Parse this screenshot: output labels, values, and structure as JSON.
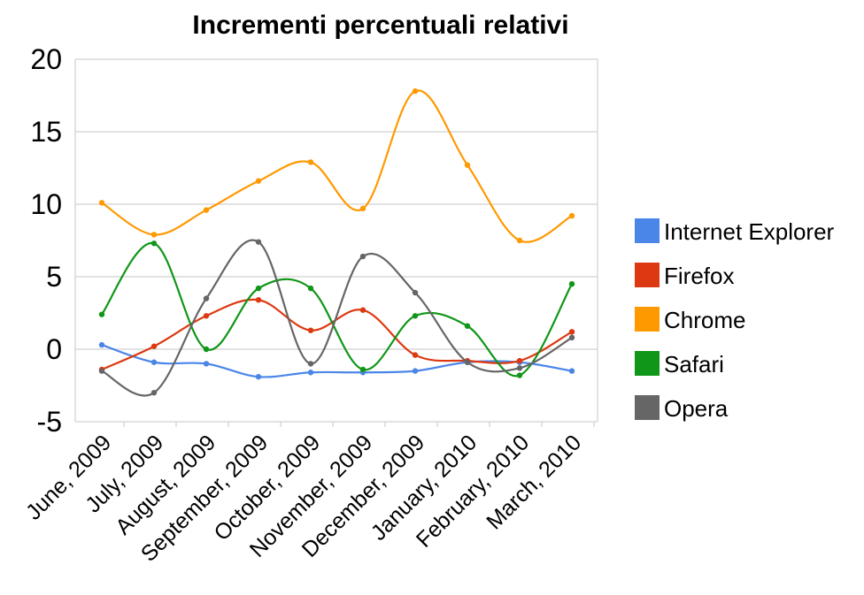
{
  "chart_data": {
    "type": "line",
    "title": "Incrementi percentuali relativi",
    "xlabel": "",
    "ylabel": "",
    "categories": [
      "June, 2009",
      "July, 2009",
      "August, 2009",
      "September, 2009",
      "October, 2009",
      "November, 2009",
      "December, 2009",
      "January, 2010",
      "February, 2010",
      "March, 2010"
    ],
    "ylim": [
      -5,
      20
    ],
    "yticks": [
      "20",
      "15",
      "10",
      "5",
      "0",
      "-5"
    ],
    "ytick_values": [
      20,
      15,
      10,
      5,
      0,
      -5
    ],
    "grid": true,
    "smooth": true,
    "legend_position": "right",
    "series": [
      {
        "name": "Internet Explorer",
        "color": "#4a86e8",
        "values": [
          0.3,
          -0.9,
          -1.0,
          -1.9,
          -1.6,
          -1.6,
          -1.5,
          -0.9,
          -0.9,
          -1.5
        ]
      },
      {
        "name": "Firefox",
        "color": "#dc3912",
        "values": [
          -1.4,
          0.2,
          2.3,
          3.4,
          1.3,
          2.7,
          -0.4,
          -0.8,
          -0.8,
          1.2
        ]
      },
      {
        "name": "Chrome",
        "color": "#ff9900",
        "values": [
          10.1,
          7.9,
          9.6,
          11.6,
          12.9,
          9.7,
          17.8,
          12.7,
          7.5,
          9.2
        ]
      },
      {
        "name": "Safari",
        "color": "#109618",
        "values": [
          2.4,
          7.3,
          0.0,
          4.2,
          4.2,
          -1.4,
          2.3,
          1.6,
          -1.8,
          4.5
        ]
      },
      {
        "name": "Opera",
        "color": "#666666",
        "values": [
          -1.5,
          -3.0,
          3.5,
          7.4,
          -1.0,
          6.4,
          3.9,
          -0.9,
          -1.3,
          0.8
        ]
      }
    ]
  }
}
